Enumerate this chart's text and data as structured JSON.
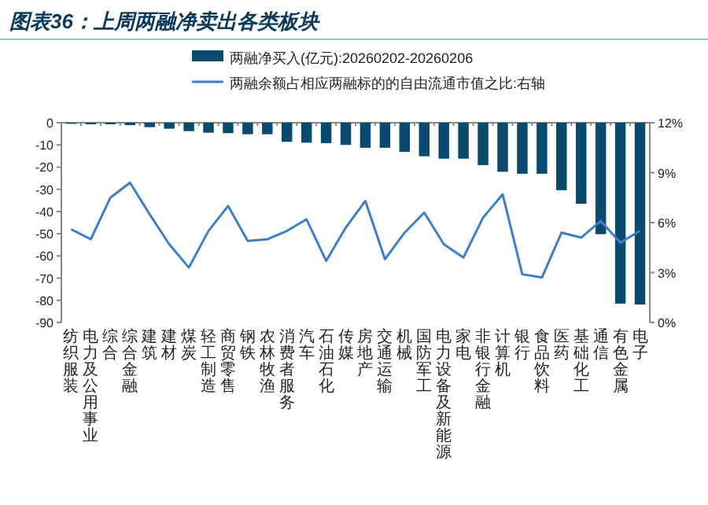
{
  "chart_data": {
    "type": "bar",
    "title": "图表36：上周两融净卖出各类板块",
    "categories": [
      "纺织服装",
      "电力及公用事业",
      "综合",
      "综合金融",
      "建筑",
      "建材",
      "煤炭",
      "轻工制造",
      "商贸零售",
      "钢铁",
      "农林牧渔",
      "消费者服务",
      "汽车",
      "石油石化",
      "传媒",
      "房地产",
      "交通运输",
      "机械",
      "国防军工",
      "电力设备及新能源",
      "家电",
      "非银行金融",
      "计算机",
      "银行",
      "食品饮料",
      "医药",
      "基础化工",
      "通信",
      "有色金属",
      "电子"
    ],
    "series": [
      {
        "name": "两融净买入(亿元):20260202-20260206",
        "color": "#0b4a6f",
        "values": [
          -0.5,
          -0.7,
          -0.7,
          -1.1,
          -2,
          -2.7,
          -3.8,
          -4.5,
          -4.7,
          -5.2,
          -5.2,
          -8.6,
          -9,
          -9.2,
          -10,
          -11.3,
          -11.3,
          -13.1,
          -15.1,
          -16.2,
          -16.2,
          -19.1,
          -22.1,
          -23,
          -23,
          -30.4,
          -36.5,
          -50.2,
          -81.5,
          -81.9
        ]
      },
      {
        "name": "两融余额占相应两融标的的自由流通市值之比:右轴",
        "type": "line",
        "axis": "y2",
        "color": "#3d7fc6",
        "values": [
          5.6,
          5.0,
          7.5,
          8.4,
          6.5,
          4.7,
          3.3,
          5.5,
          7.0,
          4.9,
          5.0,
          5.5,
          6.2,
          3.7,
          5.7,
          7.3,
          3.8,
          5.4,
          6.6,
          4.7,
          3.9,
          6.3,
          7.7,
          2.9,
          2.7,
          5.4,
          5.1,
          6.1,
          4.8,
          5.5
        ]
      }
    ],
    "ylim": [
      -90,
      0
    ],
    "yticks": [
      -90,
      -80,
      -70,
      -60,
      -50,
      -40,
      -30,
      -20,
      -10,
      0
    ],
    "y2lim": [
      0,
      12
    ],
    "y2ticks": [
      {
        "value": 0,
        "label": "0%"
      },
      {
        "value": 3,
        "label": "3%"
      },
      {
        "value": 6,
        "label": "6%"
      },
      {
        "value": 9,
        "label": "9%"
      },
      {
        "value": 12,
        "label": "12%"
      }
    ],
    "legend": "top",
    "grid": false
  }
}
